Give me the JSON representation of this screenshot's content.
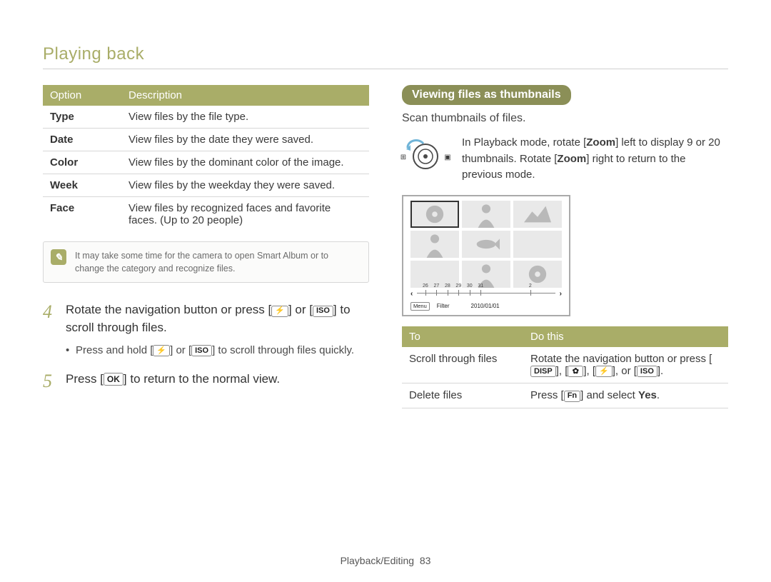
{
  "section_title": "Playing back",
  "footer": {
    "section": "Playback/Editing",
    "page": "83"
  },
  "option_table": {
    "heads": [
      "Option",
      "Description"
    ],
    "rows": [
      {
        "option": "Type",
        "desc": "View files by the file type."
      },
      {
        "option": "Date",
        "desc": "View files by the date they were saved."
      },
      {
        "option": "Color",
        "desc": "View files by the dominant color of the image."
      },
      {
        "option": "Week",
        "desc": "View files by the weekday they were saved."
      },
      {
        "option": "Face",
        "desc": "View files by recognized faces and favorite faces. (Up to 20 people)"
      }
    ]
  },
  "note_text": "It may take some time for the camera to open Smart Album or to change the category and recognize files.",
  "step4": {
    "num": "4",
    "pre": "Rotate the navigation button or press [",
    "mid": "] or [",
    "post": "] to scroll through files.",
    "sub_pre": "Press and hold [",
    "sub_mid": "] or [",
    "sub_post": "] to scroll through files quickly."
  },
  "step5": {
    "num": "5",
    "pre": "Press [",
    "post": "] to return to the normal view."
  },
  "icons": {
    "flash": "⚡",
    "iso": "ISO",
    "ok": "OK",
    "disp": "DISP",
    "macro": "✿",
    "fn": "Fn"
  },
  "thumbnails": {
    "heading": "Viewing files as thumbnails",
    "subtitle": "Scan thumbnails of files.",
    "instruction_parts": {
      "p1": "In Playback mode, rotate [",
      "z1": "Zoom",
      "p2": "] left to display 9 or 20 thumbnails. Rotate [",
      "z2": "Zoom",
      "p3": "] right to return to the previous mode."
    },
    "left_glyph": "⊞",
    "right_glyph": "▣"
  },
  "screen": {
    "timeline": {
      "labels": [
        "26",
        "27",
        "28",
        "29",
        "30",
        "31",
        "2"
      ],
      "positions": [
        6,
        14,
        22,
        30,
        38,
        46,
        82
      ]
    },
    "menu_chip": "Menu",
    "filter_label": "Filter",
    "date": "2010/01/01",
    "thumb_fill": "#e9e9e9",
    "shape_fill": "#b9b9b9",
    "shapes": [
      "flower",
      "person",
      "mountain",
      "person",
      "fish",
      "blank",
      "blank",
      "person",
      "flower"
    ]
  },
  "action_table": {
    "heads": [
      "To",
      "Do this"
    ],
    "rows": {
      "scroll": {
        "to": "Scroll through files",
        "pre": "Rotate the navigation button or press [",
        "s1": "], [",
        "s2": "], [",
        "s3": "], or [",
        "post": "]."
      },
      "delete": {
        "to": "Delete files",
        "pre": "Press [",
        "mid": "] and select ",
        "yes": "Yes",
        "post": "."
      }
    }
  },
  "colors": {
    "olive": "#a9ad68",
    "olive_dark": "#8b8f57",
    "rule": "#cfcfcf",
    "row_border": "#d7d7d7",
    "text": "#3a3a3a",
    "muted": "#6b6b6b",
    "screen_border": "#aaaaaa"
  }
}
